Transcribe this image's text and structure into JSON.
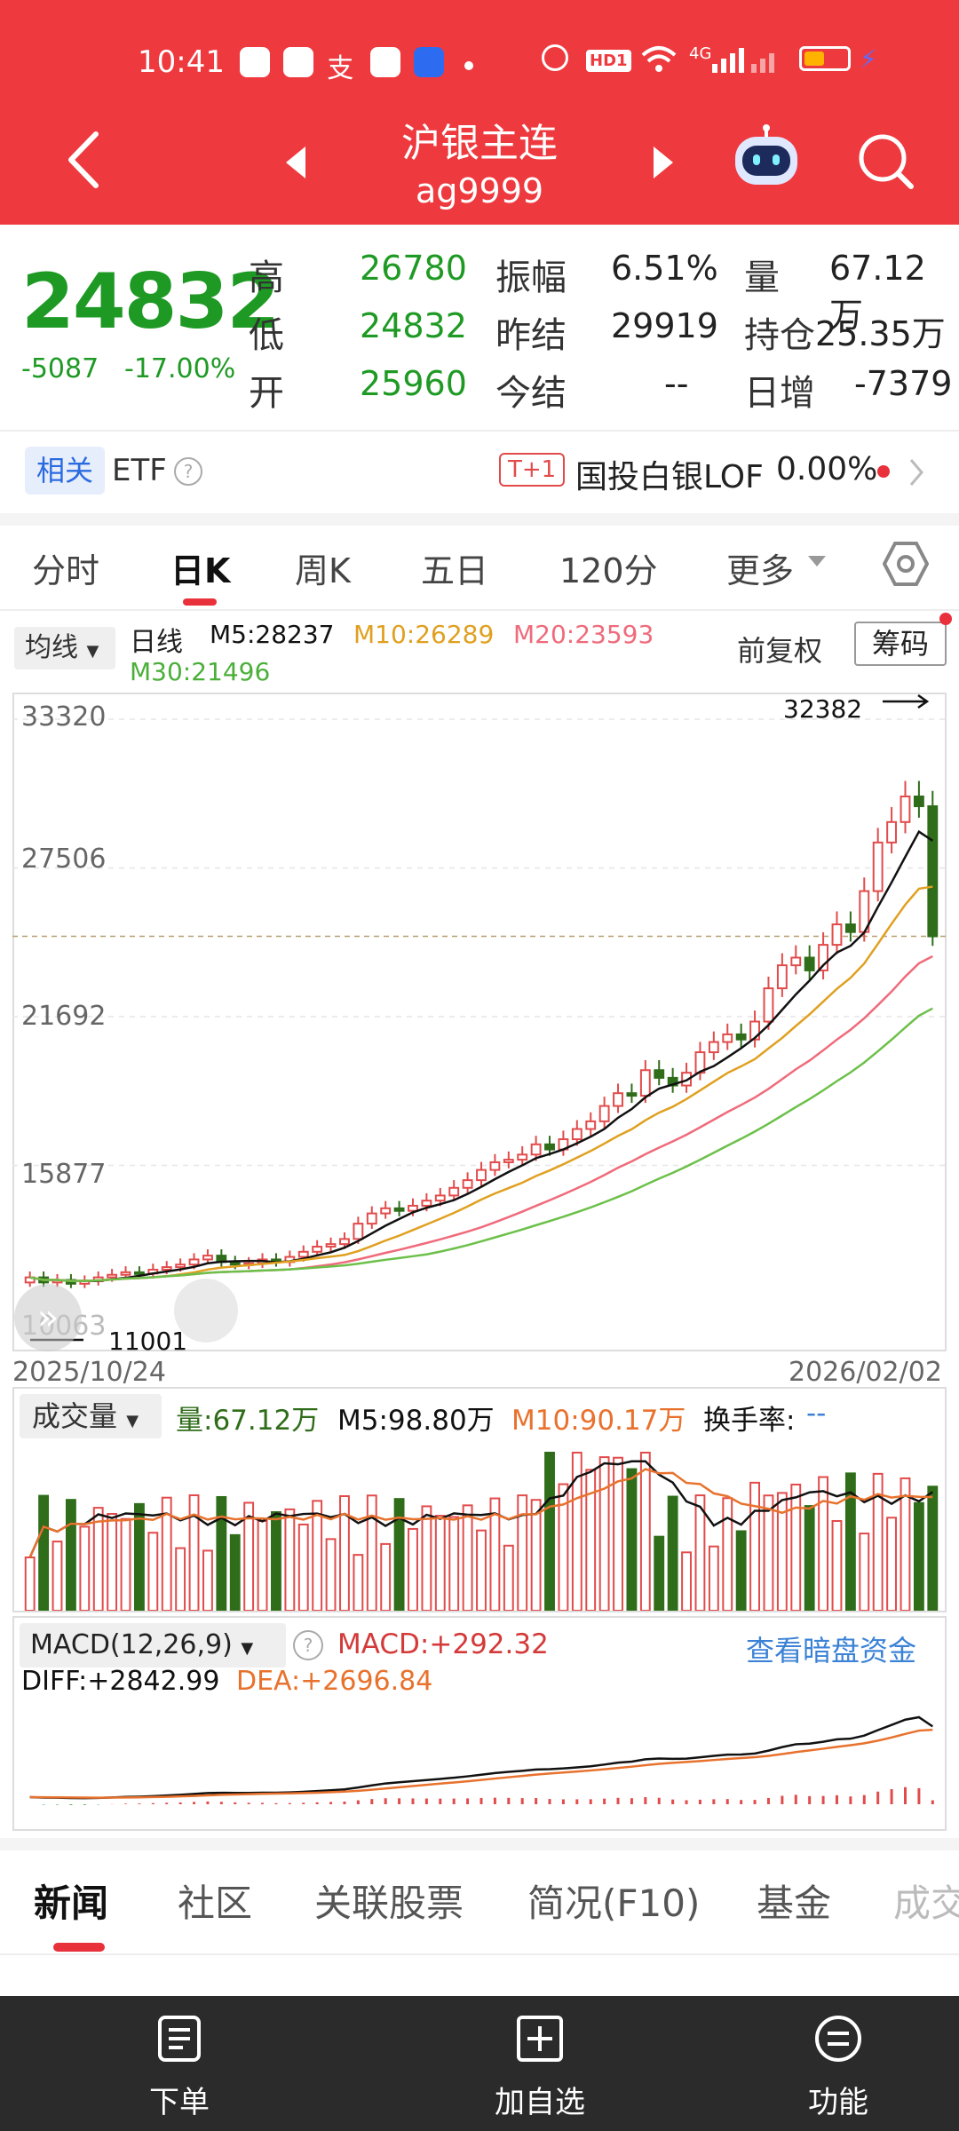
{
  "status_bar": {
    "time": "10:41",
    "icons": "⌂ ▤ 支 ✿ ⛊ •  ⏰ HD 📶 4G 📶",
    "hd_label": "HD1",
    "net_label": "4G"
  },
  "header": {
    "title": "沪银主连",
    "code": "ag9999"
  },
  "quote": {
    "price": "24832",
    "change": "-5087",
    "change_pct": "-17.00%",
    "high_label": "高",
    "high": "26780",
    "low_label": "低",
    "low": "24832",
    "open_label": "开",
    "open": "25960",
    "amplitude_label": "振幅",
    "amplitude": "6.51%",
    "prev_settle_label": "昨结",
    "prev_settle": "29919",
    "settle_label": "今结",
    "settle": "--",
    "volume_label": "量",
    "volume": "67.12万",
    "oi_label": "持仓",
    "oi": "25.35万",
    "daily_inc_label": "日增",
    "daily_inc": "-7379"
  },
  "etf_row": {
    "tag": "相关",
    "label": "ETF",
    "help": "?",
    "t1": "T+1",
    "fund_name": "国投白银LOF",
    "fund_pct": "0.00%"
  },
  "tabs": [
    "分时",
    "日K",
    "周K",
    "五日",
    "120分",
    "更多"
  ],
  "kline": {
    "ma_button": "均线",
    "period_label": "日线",
    "m5": "M5:28237",
    "m10": "M10:26289",
    "m20": "M20:23593",
    "m30": "M30:21496",
    "fq_label": "前复权",
    "chip_button": "筹码",
    "max_label": "32382",
    "min_label": "11001",
    "start_date": "2025/10/24",
    "end_date": "2026/02/02",
    "y_ticks": [
      "33320",
      "27506",
      "21692",
      "15877"
    ],
    "partial_y_label": "10063"
  },
  "volume_panel": {
    "button": "成交量",
    "vol": "量:67.12万",
    "m5": "M5:98.80万",
    "m10": "M10:90.17万",
    "turnover_label": "换手率:",
    "turnover_value": "--"
  },
  "macd_panel": {
    "button": "MACD(12,26,9)",
    "help": "?",
    "macd": "MACD:+292.32",
    "link": "查看暗盘资金",
    "diff": "DIFF:+2842.99",
    "dea": "DEA:+2696.84"
  },
  "news_tabs": [
    "新闻",
    "社区",
    "关联股票",
    "简况(F10)",
    "基金",
    "成交"
  ],
  "bottom_nav": {
    "order": "下单",
    "add": "加自选",
    "func": "功能"
  },
  "colors": {
    "header_red": "#ee3a3f",
    "up_red": "#e24b4b",
    "down_green": "#2f6d1a",
    "ma5": "#111111",
    "ma10": "#e0a020",
    "ma20": "#ef6b7b",
    "ma30": "#6cc04a",
    "link_blue": "#3b82d6"
  },
  "chart_data": [
    {
      "type": "candlestick",
      "title": "日线",
      "x_range": [
        "2025/10/24",
        "2026/02/02"
      ],
      "ylim": [
        10063,
        33320
      ],
      "y_ticks": [
        33320,
        27506,
        21692,
        15877
      ],
      "close": [
        11500,
        11300,
        11400,
        11250,
        11350,
        11500,
        11600,
        11700,
        11650,
        11800,
        11900,
        12000,
        12200,
        12350,
        12100,
        12000,
        12050,
        12200,
        12100,
        12300,
        12500,
        12700,
        12800,
        13000,
        13600,
        14000,
        14200,
        14100,
        14300,
        14500,
        14700,
        15000,
        15300,
        15700,
        16000,
        16100,
        16300,
        16700,
        16500,
        16900,
        17300,
        17600,
        18200,
        18700,
        18600,
        19600,
        19300,
        19000,
        19500,
        20300,
        20700,
        21000,
        20800,
        21500,
        22800,
        23700,
        24000,
        23500,
        24500,
        25300,
        25000,
        26600,
        28500,
        29300,
        30300,
        29919,
        24832
      ],
      "lines": [
        {
          "name": "M5",
          "last": 28237
        },
        {
          "name": "M10",
          "last": 26289
        },
        {
          "name": "M20",
          "last": 23593
        },
        {
          "name": "M30",
          "last": 21496
        }
      ],
      "annotations": {
        "max": 32382,
        "min": 11001
      }
    }
  ]
}
